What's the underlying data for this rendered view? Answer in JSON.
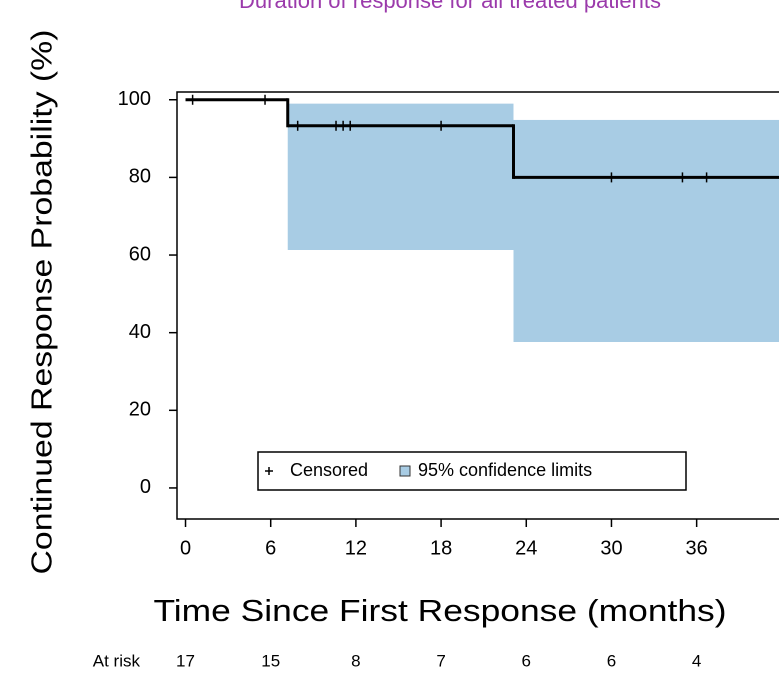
{
  "chart_data": {
    "type": "kaplan-meier",
    "title": "Duration of response for all treated patients",
    "x_label": "Time Since First Response (months)",
    "y_label": "Continued Response Probability (%)",
    "xlim": [
      -0.6,
      41.8
    ],
    "ylim": [
      -8,
      102
    ],
    "xticks": [
      0,
      6,
      12,
      18,
      24,
      30,
      36
    ],
    "yticks": [
      0,
      20,
      40,
      60,
      80,
      100
    ],
    "step_x": [
      0,
      7.2,
      23.1
    ],
    "step_y": [
      100,
      93.3,
      80
    ],
    "line_color": "#000000",
    "censored_x": [
      0.5,
      5.6,
      7.9,
      10.6,
      11.1,
      11.6,
      18,
      30,
      35,
      36.7
    ],
    "censored_y": [
      100,
      100,
      93.3,
      93.3,
      93.3,
      93.3,
      93.3,
      80,
      80,
      80
    ],
    "ci": {
      "x": [
        7.2,
        23.1
      ],
      "lower": [
        61.3,
        37.6
      ],
      "upper": [
        99,
        94.8
      ],
      "color": "#a8cce4"
    },
    "legend": [
      "Censored",
      "95% confidence limits"
    ],
    "at_risk": {
      "label": "At risk",
      "counts": [
        17,
        15,
        8,
        7,
        6,
        6,
        4
      ]
    }
  }
}
